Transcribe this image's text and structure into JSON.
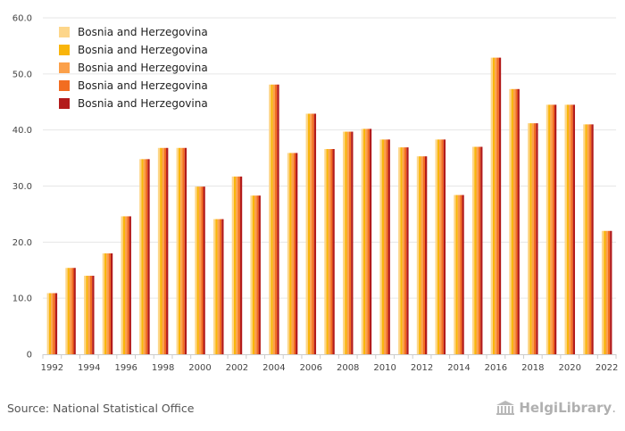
{
  "chart_data": {
    "type": "bar",
    "title": "",
    "xlabel": "",
    "ylabel": "",
    "ylim": [
      0,
      60
    ],
    "y_ticks": [
      "0",
      "10.0",
      "20.0",
      "30.0",
      "40.0",
      "50.0",
      "60.0"
    ],
    "x_tick_labels": [
      "1992",
      "1994",
      "1996",
      "1998",
      "2000",
      "2002",
      "2004",
      "2006",
      "2008",
      "2010",
      "2012",
      "2014",
      "2016",
      "2018",
      "2020",
      "2022"
    ],
    "categories": [
      "1992",
      "1993",
      "1994",
      "1995",
      "1996",
      "1997",
      "1998",
      "1999",
      "2000",
      "2001",
      "2002",
      "2003",
      "2004",
      "2005",
      "2006",
      "2007",
      "2008",
      "2009",
      "2010",
      "2011",
      "2012",
      "2013",
      "2014",
      "2015",
      "2016",
      "2017",
      "2018",
      "2019",
      "2020",
      "2021",
      "2022"
    ],
    "series": [
      {
        "name": "Bosnia and Herzegovina",
        "color": "#fdd68a",
        "values": [
          10.9,
          15.4,
          14.0,
          18.0,
          24.6,
          34.8,
          36.8,
          36.8,
          29.9,
          24.1,
          31.7,
          28.3,
          48.1,
          35.9,
          42.9,
          36.6,
          39.7,
          40.2,
          38.3,
          36.9,
          35.3,
          38.3,
          28.4,
          37.0,
          52.9,
          47.3,
          41.2,
          44.5,
          44.5,
          41.0,
          22.0
        ]
      },
      {
        "name": "Bosnia and Herzegovina",
        "color": "#f9b50b",
        "values": [
          10.9,
          15.4,
          14.0,
          18.0,
          24.6,
          34.8,
          36.8,
          36.8,
          29.9,
          24.1,
          31.7,
          28.3,
          48.1,
          35.9,
          42.9,
          36.6,
          39.7,
          40.2,
          38.3,
          36.9,
          35.3,
          38.3,
          28.4,
          37.0,
          52.9,
          47.3,
          41.2,
          44.5,
          44.5,
          41.0,
          22.0
        ]
      },
      {
        "name": "Bosnia and Herzegovina",
        "color": "#fba04a",
        "values": [
          10.9,
          15.4,
          14.0,
          18.0,
          24.6,
          34.8,
          36.8,
          36.8,
          29.9,
          24.1,
          31.7,
          28.3,
          48.1,
          35.9,
          42.9,
          36.6,
          39.7,
          40.2,
          38.3,
          36.9,
          35.3,
          38.3,
          28.4,
          37.0,
          52.9,
          47.3,
          41.2,
          44.5,
          44.5,
          41.0,
          22.0
        ]
      },
      {
        "name": "Bosnia and Herzegovina",
        "color": "#f26d21",
        "values": [
          10.9,
          15.4,
          14.0,
          18.0,
          24.6,
          34.8,
          36.8,
          36.8,
          29.9,
          24.1,
          31.7,
          28.3,
          48.1,
          35.9,
          42.9,
          36.6,
          39.7,
          40.2,
          38.3,
          36.9,
          35.3,
          38.3,
          28.4,
          37.0,
          52.9,
          47.3,
          41.2,
          44.5,
          44.5,
          41.0,
          22.0
        ]
      },
      {
        "name": "Bosnia and Herzegovina",
        "color": "#b31b1b",
        "values": [
          10.9,
          15.4,
          14.0,
          18.0,
          24.6,
          34.8,
          36.8,
          36.8,
          29.9,
          24.1,
          31.7,
          28.3,
          48.1,
          35.9,
          42.9,
          36.6,
          39.7,
          40.2,
          38.3,
          36.9,
          35.3,
          38.3,
          28.4,
          37.0,
          52.9,
          47.3,
          41.2,
          44.5,
          44.5,
          41.0,
          22.0
        ]
      }
    ],
    "grid": true,
    "legend_position": "top-left"
  },
  "footer": {
    "source": "Source: National Statistical Office",
    "logo_text": "HelgiLibrary",
    "logo_icon": "library-building-icon"
  }
}
